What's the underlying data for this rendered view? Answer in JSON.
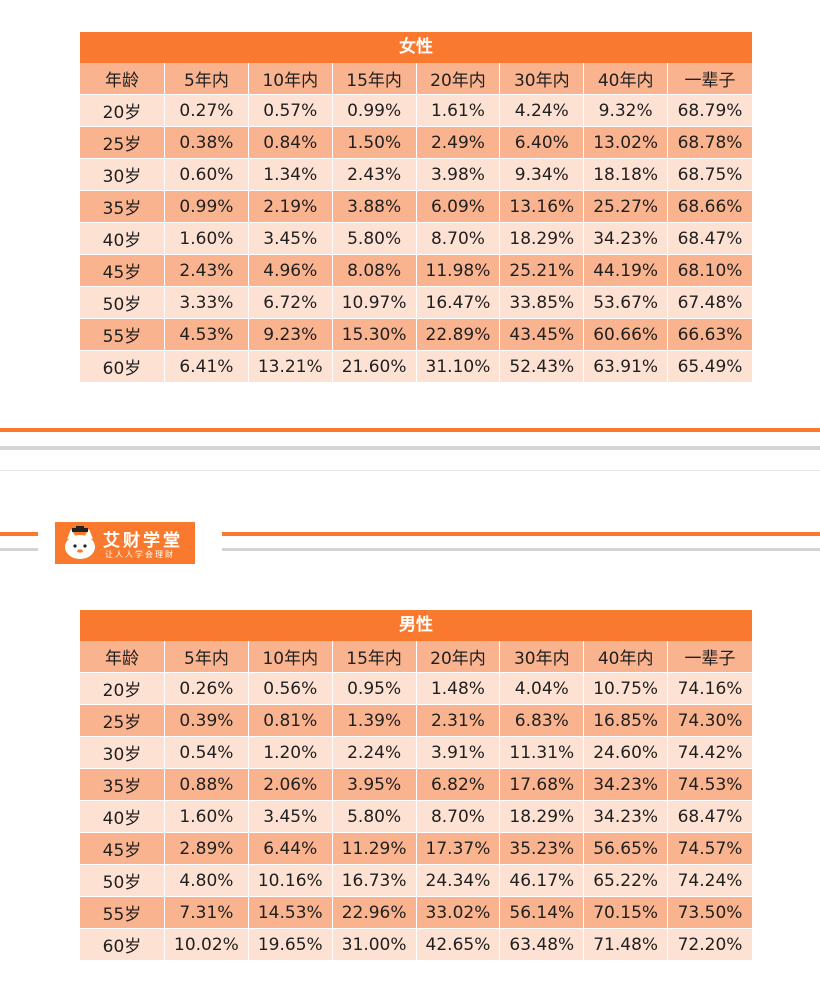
{
  "colors": {
    "accent": "#f97a2f",
    "header_band": "#f9b48f",
    "row_light": "#fde1d3",
    "row_dark": "#f9b48f",
    "divider_grey": "#d4d4d4"
  },
  "female_table": {
    "title": "女性",
    "columns": [
      "年龄",
      "5年内",
      "10年内",
      "15年内",
      "20年内",
      "30年内",
      "40年内",
      "一辈子"
    ],
    "rows": [
      [
        "20岁",
        "0.27%",
        "0.57%",
        "0.99%",
        "1.61%",
        "4.24%",
        "9.32%",
        "68.79%"
      ],
      [
        "25岁",
        "0.38%",
        "0.84%",
        "1.50%",
        "2.49%",
        "6.40%",
        "13.02%",
        "68.78%"
      ],
      [
        "30岁",
        "0.60%",
        "1.34%",
        "2.43%",
        "3.98%",
        "9.34%",
        "18.18%",
        "68.75%"
      ],
      [
        "35岁",
        "0.99%",
        "2.19%",
        "3.88%",
        "6.09%",
        "13.16%",
        "25.27%",
        "68.66%"
      ],
      [
        "40岁",
        "1.60%",
        "3.45%",
        "5.80%",
        "8.70%",
        "18.29%",
        "34.23%",
        "68.47%"
      ],
      [
        "45岁",
        "2.43%",
        "4.96%",
        "8.08%",
        "11.98%",
        "25.21%",
        "44.19%",
        "68.10%"
      ],
      [
        "50岁",
        "3.33%",
        "6.72%",
        "10.97%",
        "16.47%",
        "33.85%",
        "53.67%",
        "67.48%"
      ],
      [
        "55岁",
        "4.53%",
        "9.23%",
        "15.30%",
        "22.89%",
        "43.45%",
        "60.66%",
        "66.63%"
      ],
      [
        "60岁",
        "6.41%",
        "13.21%",
        "21.60%",
        "31.10%",
        "52.43%",
        "63.91%",
        "65.49%"
      ]
    ]
  },
  "logo": {
    "title": "艾财学堂",
    "subtitle": "让人人学会理财",
    "mascot_icon": "cat-mascot-icon"
  },
  "male_table": {
    "title": "男性",
    "columns": [
      "年龄",
      "5年内",
      "10年内",
      "15年内",
      "20年内",
      "30年内",
      "40年内",
      "一辈子"
    ],
    "rows": [
      [
        "20岁",
        "0.26%",
        "0.56%",
        "0.95%",
        "1.48%",
        "4.04%",
        "10.75%",
        "74.16%"
      ],
      [
        "25岁",
        "0.39%",
        "0.81%",
        "1.39%",
        "2.31%",
        "6.83%",
        "16.85%",
        "74.30%"
      ],
      [
        "30岁",
        "0.54%",
        "1.20%",
        "2.24%",
        "3.91%",
        "11.31%",
        "24.60%",
        "74.42%"
      ],
      [
        "35岁",
        "0.88%",
        "2.06%",
        "3.95%",
        "6.82%",
        "17.68%",
        "34.23%",
        "74.53%"
      ],
      [
        "40岁",
        "1.60%",
        "3.45%",
        "5.80%",
        "8.70%",
        "18.29%",
        "34.23%",
        "68.47%"
      ],
      [
        "45岁",
        "2.89%",
        "6.44%",
        "11.29%",
        "17.37%",
        "35.23%",
        "56.65%",
        "74.57%"
      ],
      [
        "50岁",
        "4.80%",
        "10.16%",
        "16.73%",
        "24.34%",
        "46.17%",
        "65.22%",
        "74.24%"
      ],
      [
        "55岁",
        "7.31%",
        "14.53%",
        "22.96%",
        "33.02%",
        "56.14%",
        "70.15%",
        "73.50%"
      ],
      [
        "60岁",
        "10.02%",
        "19.65%",
        "31.00%",
        "42.65%",
        "63.48%",
        "71.48%",
        "72.20%"
      ]
    ]
  }
}
